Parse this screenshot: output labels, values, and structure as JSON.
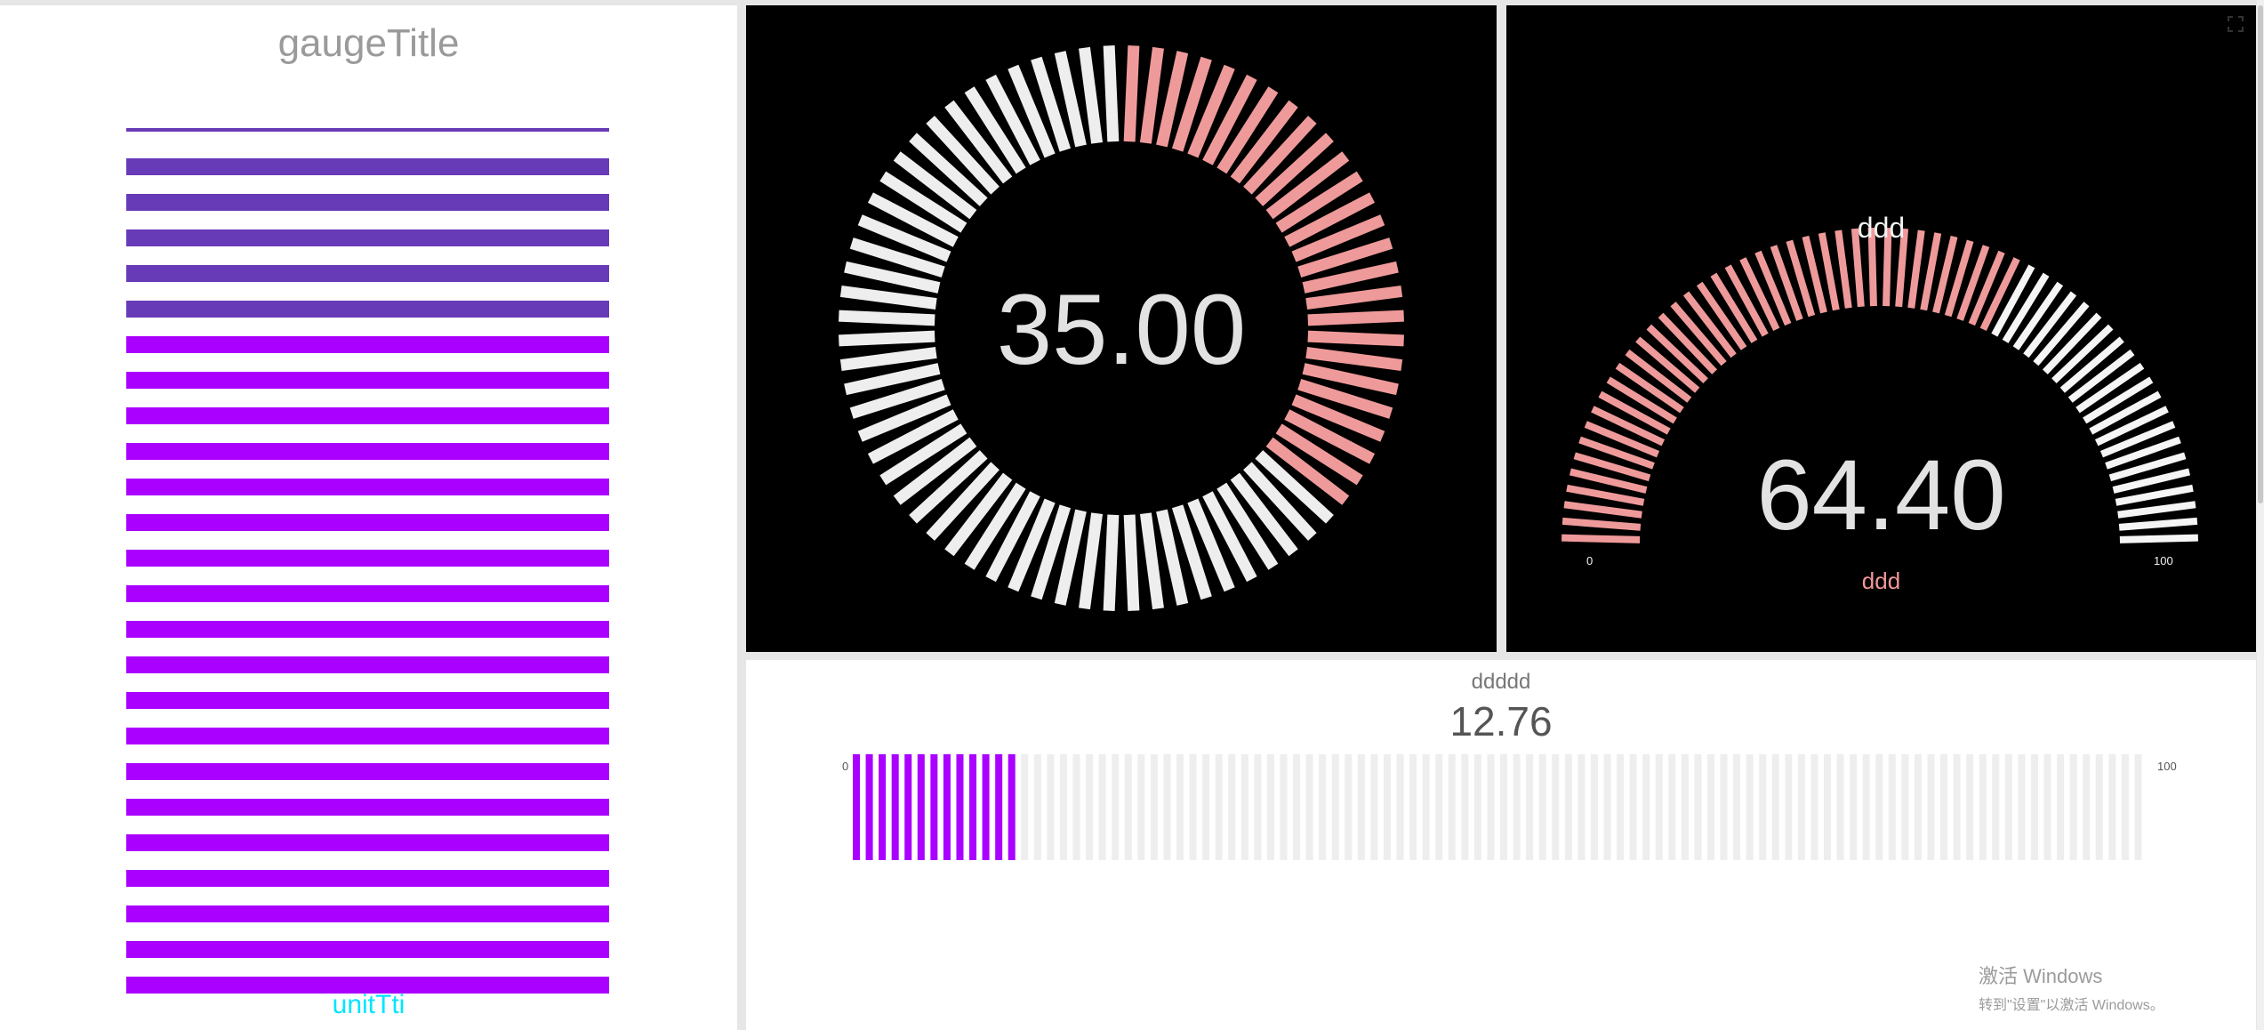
{
  "left_gauge": {
    "title": "gaugeTitle",
    "unit": "unitTti",
    "value": 0.96,
    "colors": {
      "fill": "#aa00ff",
      "tail": "#673ab7"
    }
  },
  "ring_gauge": {
    "value_text": "35.00",
    "value": 35,
    "min": 0,
    "max": 100,
    "colors": {
      "active": "#ef9a9a",
      "inactive": "#eeeeee"
    }
  },
  "arc_gauge": {
    "title": "ddd",
    "unit": "ddd",
    "value_text": "64.40",
    "value": 64.4,
    "min_label": "0",
    "max_label": "100",
    "colors": {
      "active": "#ef9a9a",
      "inactive": "#f5f5f5"
    }
  },
  "bar_gauge": {
    "title": "ddddd",
    "value_text": "12.76",
    "value": 12.76,
    "min_label": "0",
    "max_label": "100",
    "colors": {
      "active": "#aa00ff",
      "inactive": "#eeeeee"
    }
  },
  "watermark": {
    "line1": "激活 Windows",
    "line2": "转到\"设置\"以激活 Windows。"
  }
}
